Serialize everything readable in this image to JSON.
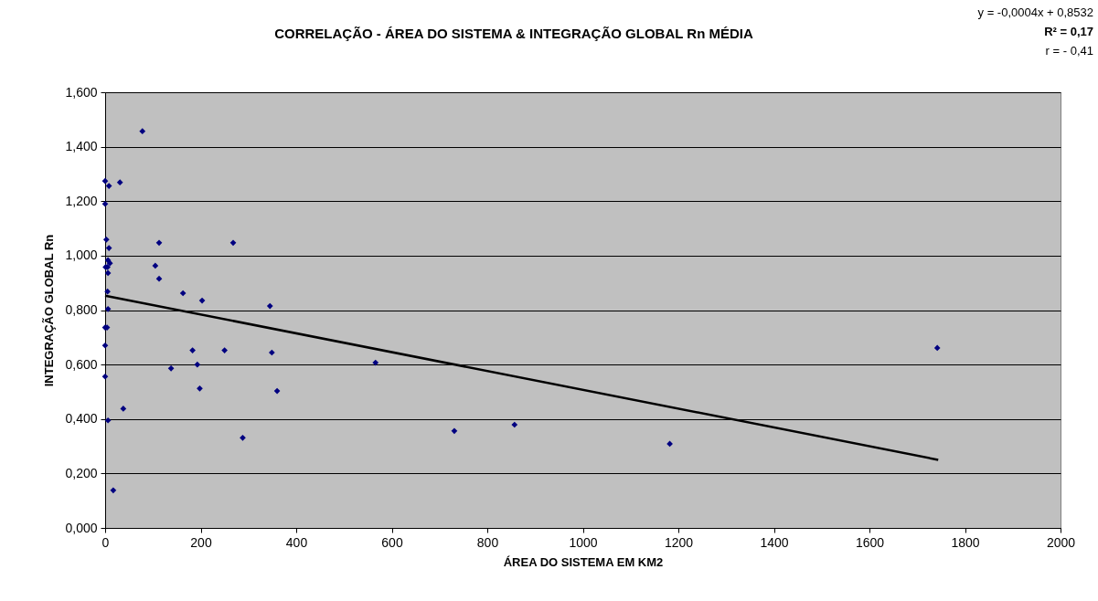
{
  "chart_data": {
    "type": "scatter",
    "title": "CORRELAÇÃO - ÁREA DO SISTEMA & INTEGRAÇÃO GLOBAL Rn MÉDIA",
    "xlabel": "ÁREA DO SISTEMA EM KM2",
    "ylabel": "INTEGRAÇÃO GLOBAL Rn",
    "annotations": [
      "y = -0,0004x + 0,8532",
      "R² = 0,17",
      "r = - 0,41"
    ],
    "series": [
      {
        "color": "#000080",
        "marker": "diamond",
        "x": [
          78,
          0,
          8,
          31,
          0,
          2.5,
          8,
          6,
          10,
          1,
          5,
          6,
          5,
          6,
          0,
          4,
          0,
          0,
          6,
          38,
          113,
          105,
          113,
          163,
          203,
          268,
          345,
          183,
          138,
          193,
          198,
          250,
          349,
          288,
          360,
          17,
          566,
          731,
          857,
          1182,
          1742
        ],
        "values": [
          1.457,
          1.274,
          1.256,
          1.269,
          1.19,
          1.059,
          1.028,
          0.983,
          0.972,
          0.958,
          0.958,
          0.936,
          0.868,
          0.804,
          0.736,
          0.736,
          0.67,
          0.556,
          0.395,
          0.438,
          1.047,
          0.963,
          0.915,
          0.862,
          0.835,
          1.047,
          0.815,
          0.652,
          0.586,
          0.6,
          0.512,
          0.652,
          0.644,
          0.331,
          0.503,
          0.138,
          0.607,
          0.356,
          0.379,
          0.309,
          0.661
        ]
      },
      {
        "type": "line",
        "color": "#000000",
        "line_style": "solid",
        "x": [
          0,
          1744
        ],
        "values": [
          0.853,
          0.25
        ]
      }
    ],
    "xlim": [
      0,
      2000
    ],
    "xticks": [
      0,
      200,
      400,
      600,
      800,
      1000,
      1200,
      1400,
      1600,
      1800,
      2000
    ],
    "ylim": [
      0,
      1.6
    ],
    "yticks": [
      {
        "value": 0,
        "label": "0,000"
      },
      {
        "value": 0.2,
        "label": "0,200"
      },
      {
        "value": 0.4,
        "label": "0,400"
      },
      {
        "value": 0.6,
        "label": "0,600"
      },
      {
        "value": 0.8,
        "label": "0,800"
      },
      {
        "value": 1.0,
        "label": "1,000"
      },
      {
        "value": 1.2,
        "label": "1,200"
      },
      {
        "value": 1.4,
        "label": "1,400"
      },
      {
        "value": 1.6,
        "label": "1,600"
      }
    ],
    "grid": "y"
  }
}
